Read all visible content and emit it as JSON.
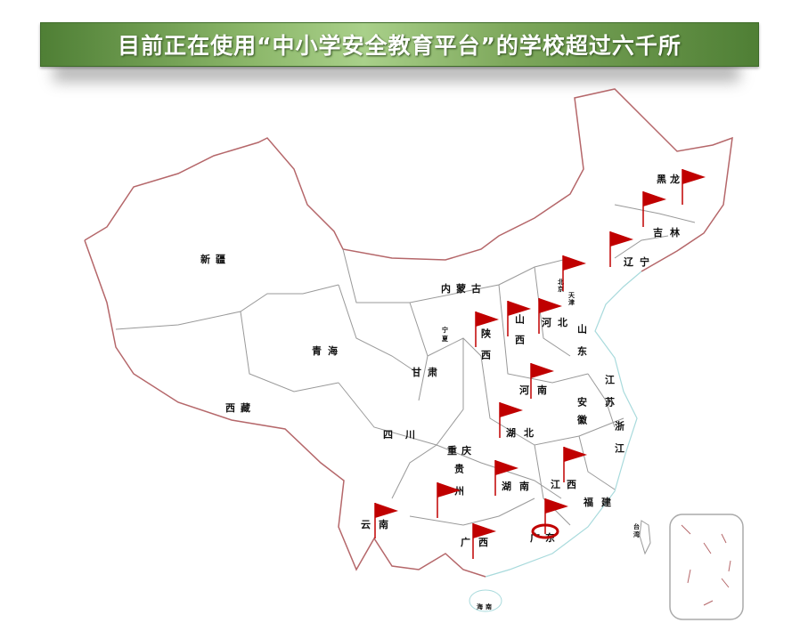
{
  "title": "目前正在使用“中小学安全教育平台”的学校超过六千所",
  "colors": {
    "banner": "#6e9a4c",
    "border": "#b5676a",
    "flag": "#c00000",
    "coast": "#a8dadc"
  },
  "provinces": [
    {
      "name": "黑龙",
      "flag": true
    },
    {
      "name": "吉林",
      "flag": true
    },
    {
      "name": "辽宁",
      "flag": true
    },
    {
      "name": "北京",
      "flag": true
    },
    {
      "name": "天津",
      "flag": false
    },
    {
      "name": "内蒙古",
      "flag": false
    },
    {
      "name": "河北",
      "flag": true
    },
    {
      "name": "山西",
      "flag": true
    },
    {
      "name": "陕西",
      "flag": true
    },
    {
      "name": "宁夏",
      "flag": false
    },
    {
      "name": "山东",
      "flag": false
    },
    {
      "name": "河南",
      "flag": true
    },
    {
      "name": "江苏",
      "flag": false
    },
    {
      "name": "安徽",
      "flag": false
    },
    {
      "name": "湖北",
      "flag": true
    },
    {
      "name": "浙江",
      "flag": false
    },
    {
      "name": "江西",
      "flag": true
    },
    {
      "name": "湖南",
      "flag": true
    },
    {
      "name": "福建",
      "flag": false
    },
    {
      "name": "重庆",
      "flag": false
    },
    {
      "name": "贵州",
      "flag": true
    },
    {
      "name": "云南",
      "flag": true
    },
    {
      "name": "广西",
      "flag": true
    },
    {
      "name": "广东",
      "flag": true
    },
    {
      "name": "台湾",
      "flag": false
    },
    {
      "name": "海南",
      "flag": false
    },
    {
      "name": "新疆",
      "flag": false
    },
    {
      "name": "青海",
      "flag": false
    },
    {
      "name": "甘肃",
      "flag": false
    },
    {
      "name": "西藏",
      "flag": false
    },
    {
      "name": "四川",
      "flag": false
    }
  ]
}
